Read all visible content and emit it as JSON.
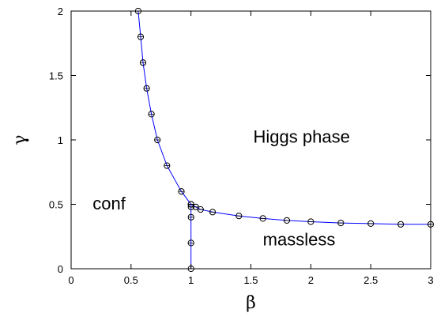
{
  "chart_data": {
    "type": "line",
    "xlabel": "β",
    "ylabel": "γ",
    "xlim": [
      0,
      3
    ],
    "ylim": [
      0,
      2
    ],
    "x_ticks": [
      "0",
      "0.5",
      "1",
      "1.5",
      "2",
      "2.5",
      "3"
    ],
    "y_ticks": [
      "0",
      "0.5",
      "1",
      "1.5",
      "2"
    ],
    "grid": false,
    "colors": {
      "line": "#0000ff",
      "marker": "#000000"
    },
    "annotations": [
      {
        "text": "Higgs phase",
        "x": 1.52,
        "y": 0.98
      },
      {
        "text": "conf",
        "x": 0.18,
        "y": 0.46
      },
      {
        "text": "massless",
        "x": 1.6,
        "y": 0.18
      }
    ],
    "series": [
      {
        "x": [
          0.56,
          0.58,
          0.6,
          0.63,
          0.67,
          0.72,
          0.8,
          0.92,
          1.0,
          1.04,
          1.08,
          1.18,
          1.4,
          1.6,
          1.8,
          2.0,
          2.25,
          2.5,
          2.75,
          3.0
        ],
        "y": [
          2.0,
          1.8,
          1.6,
          1.4,
          1.2,
          1.0,
          0.8,
          0.6,
          0.5,
          0.48,
          0.46,
          0.44,
          0.41,
          0.39,
          0.375,
          0.365,
          0.355,
          0.35,
          0.345,
          0.345
        ]
      },
      {
        "x": [
          1.0,
          1.0,
          1.0,
          1.0,
          1.0
        ],
        "y": [
          0.0,
          0.2,
          0.4,
          0.48,
          0.5
        ]
      }
    ]
  }
}
